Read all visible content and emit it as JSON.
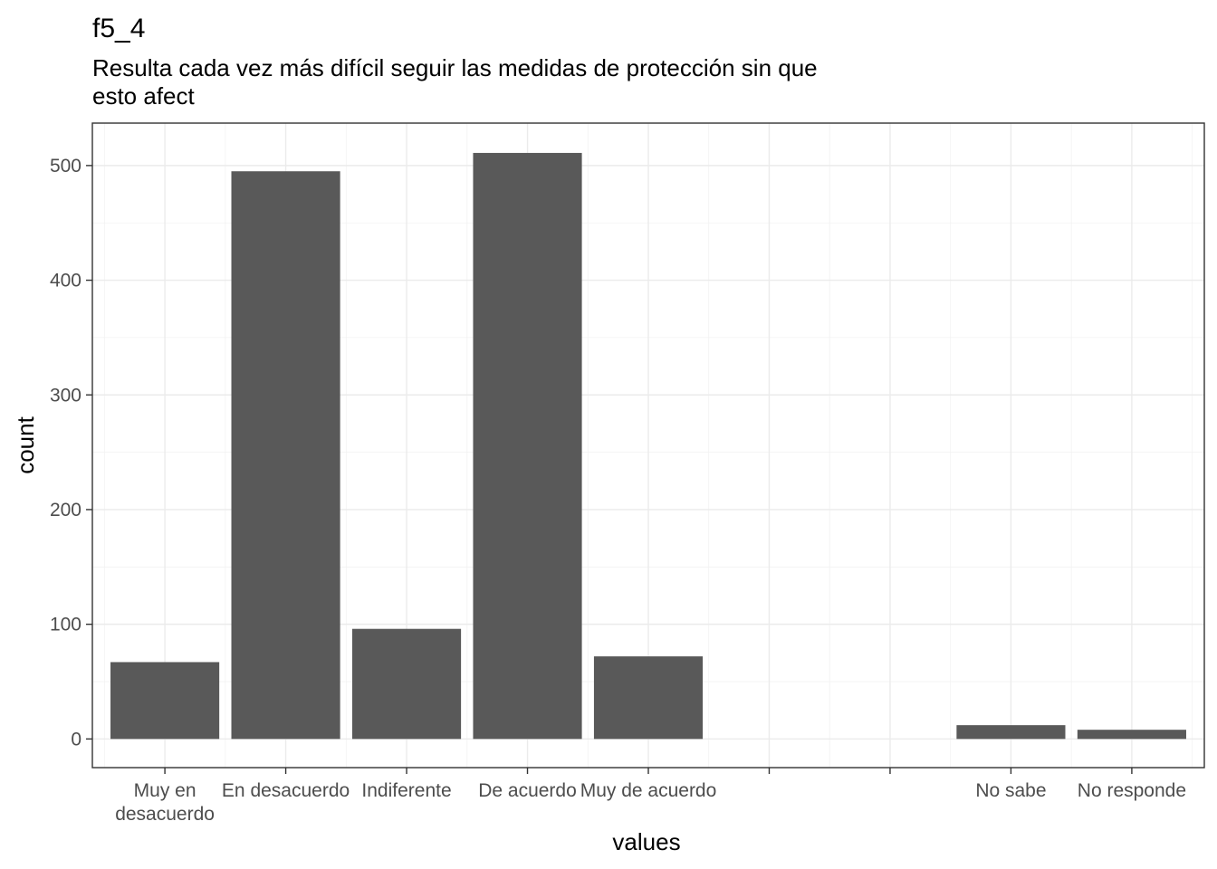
{
  "chart_data": {
    "type": "bar",
    "title": "f5_4",
    "subtitle_lines": [
      "Resulta cada vez más difícil seguir las medidas de protección sin que",
      "esto afect"
    ],
    "xlabel": "values",
    "ylabel": "count",
    "categories": [
      [
        "Muy en",
        "desacuerdo"
      ],
      [
        "En desacuerdo"
      ],
      [
        "Indiferente"
      ],
      [
        "De acuerdo"
      ],
      [
        "Muy de acuerdo"
      ],
      [
        ""
      ],
      [
        ""
      ],
      [
        "No sabe"
      ],
      [
        "No responde"
      ]
    ],
    "values": [
      67,
      495,
      96,
      511,
      72,
      0,
      0,
      12,
      8
    ],
    "ylim": [
      -25,
      537
    ],
    "yticks": [
      0,
      100,
      200,
      300,
      400,
      500
    ],
    "ytick_labels": [
      "0",
      "100",
      "200",
      "300",
      "400",
      "500"
    ],
    "bar_color": "#595959",
    "grid": true,
    "legend": "none"
  }
}
